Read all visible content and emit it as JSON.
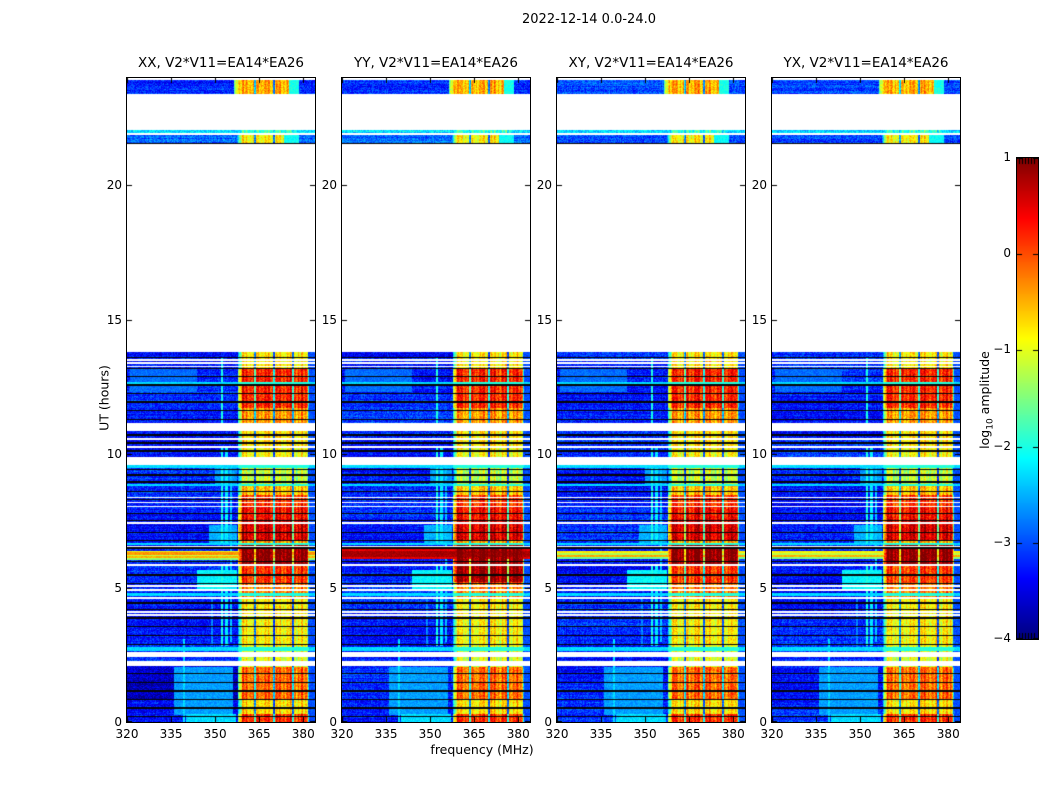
{
  "title": "2022-12-14 0.0-24.0",
  "axes": {
    "xlabel": "frequency (MHz)",
    "ylabel": "UT (hours)",
    "x_tick_labels": [
      "320",
      "335",
      "350",
      "365",
      "380"
    ],
    "y_tick_labels": [
      "0",
      "5",
      "10",
      "15",
      "20"
    ]
  },
  "colorbar": {
    "label_prefix": "log",
    "label_sub": "10",
    "label_suffix": " amplitude",
    "tick_labels": [
      "1",
      "0",
      "−1",
      "−2",
      "−3",
      "−4"
    ],
    "tick_values": [
      1,
      0,
      -1,
      -2,
      -3,
      -4
    ],
    "range": [
      -4,
      1
    ],
    "colormap": "jet"
  },
  "chart_data": {
    "type": "heatmap",
    "title": "2022-12-14 0.0-24.0",
    "xlabel": "frequency (MHz)",
    "ylabel": "UT (hours)",
    "x_range": [
      320,
      384
    ],
    "x_ticks": [
      320,
      335,
      350,
      365,
      380
    ],
    "y_range": [
      0,
      24
    ],
    "y_ticks": [
      0,
      5,
      10,
      15,
      20
    ],
    "value_label": "log10 amplitude",
    "value_range": [
      -4,
      1
    ],
    "panels": [
      {
        "label": "XX, V2*V11=EA14*EA26",
        "pol": "XX",
        "seed": 11,
        "bg_adjust": [
          [
            0.85,
            2.1,
            -0.45
          ]
        ],
        "burst_rows": [
          [
            6.32,
            6.38,
            -0.9
          ],
          [
            6.24,
            6.32,
            -0.35
          ],
          [
            6.17,
            6.24,
            -1.15
          ],
          [
            6.1,
            6.17,
            -0.5
          ],
          [
            6.03,
            6.1,
            -1.4
          ]
        ],
        "col_adjust": []
      },
      {
        "label": "YY, V2*V11=EA14*EA26",
        "pol": "YY",
        "seed": 22,
        "bg_adjust": [],
        "burst_rows": [
          [
            6.08,
            6.45,
            0.5
          ],
          [
            6.14,
            6.38,
            0.8
          ]
        ],
        "col_adjust": [
          [
            5.2,
            5.8,
            0.85
          ]
        ]
      },
      {
        "label": "XY, V2*V11=EA14*EA26",
        "pol": "XY",
        "seed": 33,
        "bg_adjust": [],
        "burst_rows": [
          [
            6.3,
            6.37,
            -0.8
          ],
          [
            6.22,
            6.3,
            -1.3
          ],
          [
            6.14,
            6.22,
            -0.45
          ],
          [
            6.07,
            6.14,
            -1.6
          ]
        ],
        "col_adjust": []
      },
      {
        "label": "YX, V2*V11=EA14*EA26",
        "pol": "YX",
        "seed": 44,
        "bg_adjust": [],
        "burst_rows": [
          [
            6.31,
            6.38,
            -0.85
          ],
          [
            6.23,
            6.31,
            -1.2
          ],
          [
            6.15,
            6.23,
            -0.5
          ],
          [
            6.06,
            6.15,
            -1.5
          ]
        ],
        "col_adjust": []
      }
    ],
    "segments": [
      {
        "ut": [
          0.0,
          13.79
        ],
        "bg": -3.25,
        "col": [
          357.8,
          382.0
        ],
        "use_table": true,
        "tail": [
          382.0,
          384.0,
          -3.0
        ]
      },
      {
        "ut": [
          21.55,
          21.88
        ],
        "bg": -2.95,
        "col": [
          357.5,
          373.5
        ],
        "col_amp": -0.85,
        "tail": [
          373.5,
          378.5,
          -2.1
        ]
      },
      {
        "ut": [
          21.95,
          22.08
        ],
        "bg": -2.35,
        "col": [
          357.5,
          378.0
        ],
        "col_amp": -1.9,
        "tail": null
      },
      {
        "ut": [
          23.4,
          23.92
        ],
        "bg": -3.1,
        "col": [
          356.3,
          375.0
        ],
        "col_amp": -0.5,
        "tail": [
          375.0,
          378.5,
          -2.0
        ]
      }
    ],
    "gaps": [
      [
        2.08,
        2.28
      ],
      [
        2.44,
        2.62
      ],
      [
        3.95,
        4.01
      ],
      [
        4.06,
        4.12
      ],
      [
        4.6,
        4.65
      ],
      [
        4.9,
        4.96
      ],
      [
        5.03,
        5.09
      ],
      [
        5.82,
        5.87
      ],
      [
        6.52,
        6.57
      ],
      [
        7.38,
        7.44
      ],
      [
        8.01,
        8.06
      ],
      [
        8.16,
        8.21
      ],
      [
        8.35,
        8.4
      ],
      [
        9.58,
        9.88
      ],
      [
        10.22,
        10.28
      ],
      [
        10.52,
        10.58
      ],
      [
        10.85,
        11.15
      ],
      [
        13.22,
        13.28
      ],
      [
        13.35,
        13.41
      ],
      [
        13.47,
        13.52
      ]
    ],
    "dark_row_centers": [
      0.2,
      0.52,
      0.84,
      1.16,
      1.48,
      1.8,
      2.9,
      3.22,
      3.55,
      3.88,
      4.2,
      4.44,
      5.16,
      5.48,
      5.98,
      6.49,
      6.76,
      7.05,
      7.5,
      7.78,
      8.28,
      8.6,
      8.95,
      9.2,
      9.4,
      10.1,
      10.4,
      10.7,
      11.28,
      11.6,
      11.92,
      12.24,
      12.56,
      12.88,
      13.18,
      13.58,
      21.57
    ],
    "dark_row_width": 0.05,
    "cyan_rows": [
      [
        2.64,
        2.8
      ],
      [
        4.68,
        4.82
      ],
      [
        6.58,
        6.68
      ],
      [
        8.78,
        8.86
      ],
      [
        9.46,
        9.56
      ],
      [
        12.6,
        12.68
      ]
    ],
    "column_intensity": [
      [
        0.0,
        0.3,
        0.15
      ],
      [
        0.3,
        0.85,
        -0.75
      ],
      [
        0.85,
        2.05,
        -0.15
      ],
      [
        2.05,
        2.85,
        -1.05
      ],
      [
        2.85,
        4.6,
        -0.85
      ],
      [
        4.6,
        5.15,
        -0.25
      ],
      [
        5.15,
        5.8,
        0.1
      ],
      [
        5.8,
        6.6,
        0.95
      ],
      [
        6.6,
        6.8,
        -0.45
      ],
      [
        6.8,
        7.55,
        0.55
      ],
      [
        7.55,
        8.02,
        0.35
      ],
      [
        8.02,
        8.45,
        0.1
      ],
      [
        8.45,
        8.8,
        -0.6
      ],
      [
        8.8,
        9.58,
        -1.2
      ],
      [
        9.88,
        10.2,
        -0.9
      ],
      [
        10.2,
        10.92,
        -0.75
      ],
      [
        11.15,
        11.7,
        -0.4
      ],
      [
        11.7,
        13.15,
        0.2
      ],
      [
        13.15,
        13.8,
        -0.8
      ]
    ],
    "column_separators_mhz": [
      363.5,
      370.0,
      376.5,
      381.9
    ],
    "rfi_lines": [
      {
        "f": 339.3,
        "amp": -2.3,
        "ut": [
          [
            0.0,
            3.1
          ]
        ]
      },
      {
        "f": 348.9,
        "amp": -2.7,
        "ut": [
          [
            2.85,
            4.6
          ]
        ]
      },
      {
        "f": 352.3,
        "amp": -2.0,
        "ut": [
          [
            2.85,
            5.8
          ],
          [
            6.6,
            10.2
          ],
          [
            11.15,
            13.6
          ]
        ]
      },
      {
        "f": 353.9,
        "amp": -2.2,
        "ut": [
          [
            2.85,
            5.8
          ],
          [
            6.6,
            10.2
          ]
        ]
      },
      {
        "f": 355.4,
        "amp": -2.4,
        "ut": [
          [
            3.0,
            9.5
          ]
        ]
      }
    ],
    "blobs": [
      [
        0.25,
        2.05,
        336,
        356,
        -2.6
      ],
      [
        4.95,
        5.65,
        344,
        357.5,
        -2.15
      ],
      [
        6.65,
        7.35,
        348,
        357.5,
        -2.5
      ],
      [
        8.8,
        9.55,
        350,
        357.5,
        -2.6
      ],
      [
        12.3,
        13.2,
        321,
        344,
        -2.85
      ],
      [
        0.0,
        0.3,
        340,
        357,
        -2.3
      ]
    ]
  }
}
